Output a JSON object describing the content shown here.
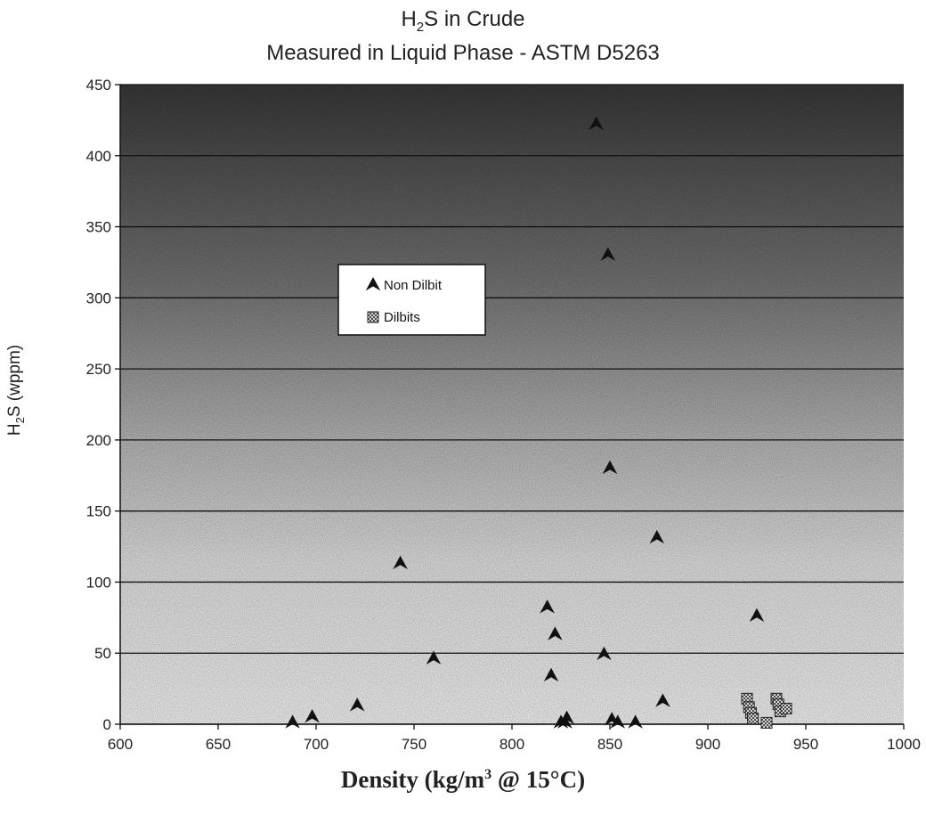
{
  "chart_data": {
    "type": "scatter",
    "title_line1_main": "H",
    "title_line1_sub": "2",
    "title_line1_rest": "S in Crude",
    "title_line2": "Measured in Liquid Phase - ASTM D5263",
    "xlabel_main": "Density (kg/m",
    "xlabel_sup": "3",
    "xlabel_rest": " @ 15°C)",
    "ylabel_main": "H",
    "ylabel_sub": "2",
    "ylabel_rest": "S  (wppm)",
    "xlim": [
      600,
      1000
    ],
    "ylim": [
      0,
      450
    ],
    "x_ticks": [
      "600",
      "650",
      "700",
      "750",
      "800",
      "850",
      "900",
      "950",
      "1000"
    ],
    "y_ticks": [
      "0",
      "50",
      "100",
      "150",
      "200",
      "250",
      "300",
      "350",
      "400",
      "450"
    ],
    "grid": "horizontal",
    "legend_position": "upper-left-center",
    "series": [
      {
        "name": "Non Dilbit",
        "marker": "triangle",
        "x": [
          688,
          698,
          721,
          743,
          760,
          818,
          820,
          822,
          825,
          827,
          828,
          843,
          847,
          849,
          850,
          851,
          854,
          863,
          874,
          877,
          925
        ],
        "y": [
          1,
          5,
          13,
          113,
          46,
          82,
          34,
          63,
          1,
          1,
          4,
          422,
          49,
          330,
          180,
          3,
          1,
          1,
          131,
          16,
          76
        ]
      },
      {
        "name": "Dilbits",
        "marker": "square-hatched",
        "x": [
          920,
          921,
          922,
          923,
          930,
          935,
          936,
          937,
          940
        ],
        "y": [
          18,
          12,
          8,
          4,
          1,
          18,
          14,
          9,
          11
        ]
      }
    ],
    "colors": {
      "background_dark": "#3a3a3a",
      "background_light": "#ffffff",
      "gridline": "#111111",
      "marker": "#111111"
    }
  }
}
